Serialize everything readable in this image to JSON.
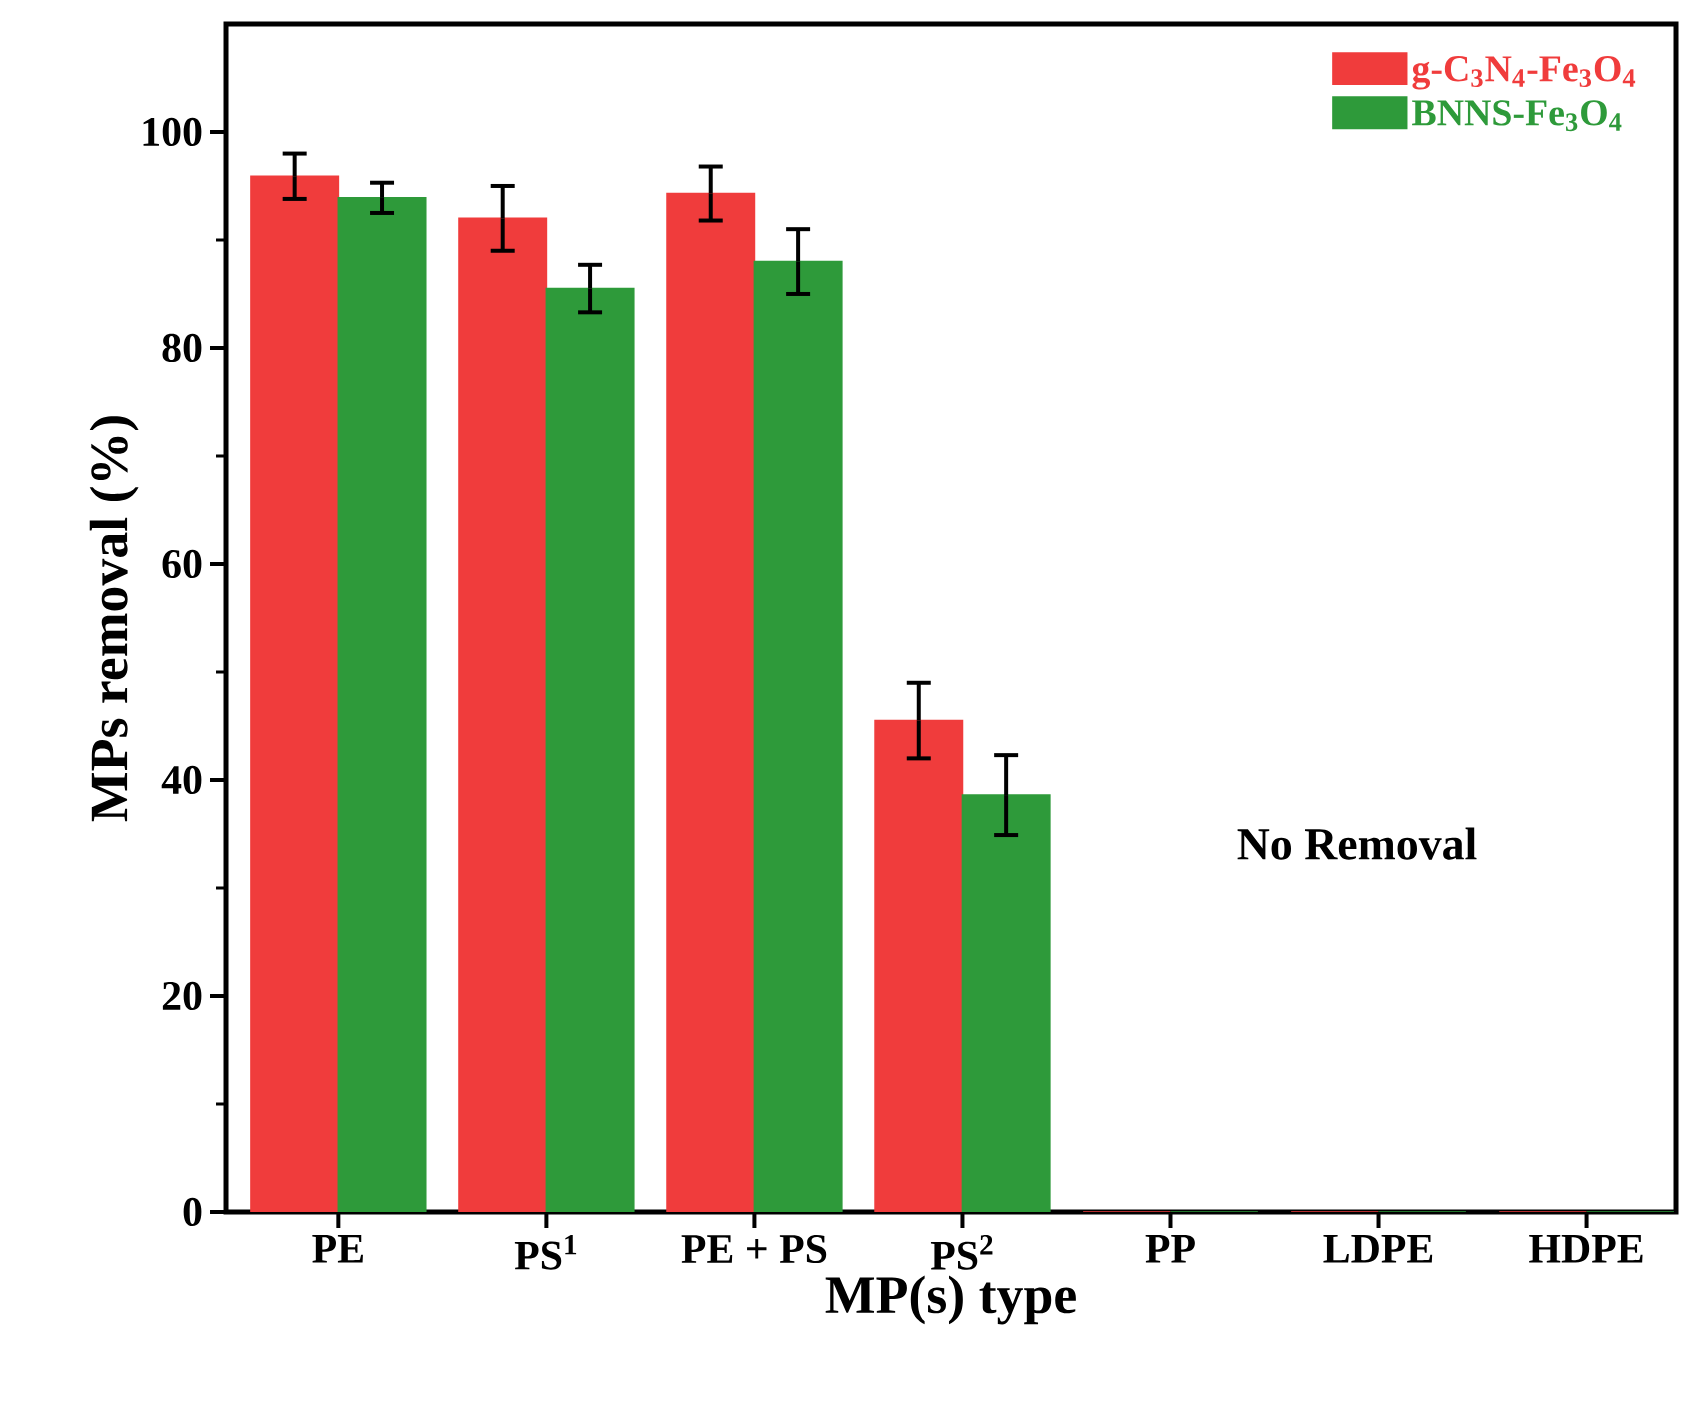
{
  "chart_data": {
    "type": "bar",
    "xlabel": "MP(s) type",
    "ylabel": "MPs removal (%)",
    "categories": [
      "PE",
      "PS$^{1}$",
      "PE + PS",
      "PS$^{2}$",
      "PP",
      "LDPE",
      "HDPE"
    ],
    "series": [
      {
        "name": "g-C$_{3}$N$_{4}$-Fe$_{3}$O$_{4}$",
        "color": "#f03c3c",
        "values": [
          95.9,
          92.0,
          94.3,
          45.5,
          0,
          0,
          0
        ],
        "errors": [
          2.1,
          3.0,
          2.5,
          3.5,
          null,
          null,
          null
        ]
      },
      {
        "name": "BNNS-Fe$_{3}$O$_{4}$",
        "color": "#2e9a3a",
        "values": [
          93.9,
          85.5,
          88.0,
          38.6,
          0,
          0,
          0
        ],
        "errors": [
          1.4,
          2.2,
          3.0,
          3.7,
          null,
          null,
          null
        ]
      }
    ],
    "ylim": [
      0,
      110
    ],
    "yticks": [
      0,
      20,
      40,
      60,
      80,
      100
    ],
    "legend": "top right",
    "grid": false,
    "annotations": [
      "No Removal"
    ]
  }
}
